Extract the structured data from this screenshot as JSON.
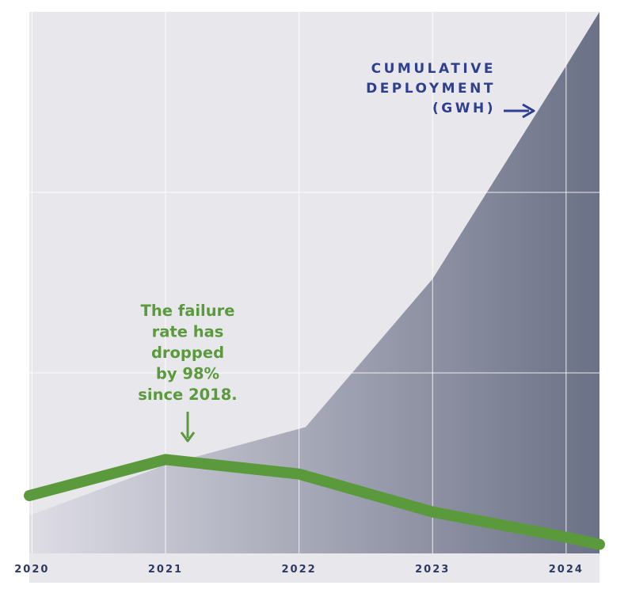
{
  "chart_data": {
    "type": "area",
    "x": [
      "2020",
      "2021",
      "2022",
      "2023",
      "2024"
    ],
    "series": [
      {
        "name": "CUMULATIVE DEPLOYMENT (GWH)",
        "kind": "area",
        "color": "#6b7186",
        "points": [
          [
            2019.98,
            0.21
          ],
          [
            2021.0,
            0.49
          ],
          [
            2022.05,
            0.7
          ],
          [
            2023.0,
            1.52
          ],
          [
            2024.0,
            2.7
          ],
          [
            2024.25,
            3.0
          ]
        ]
      },
      {
        "name": "failure rate",
        "kind": "line",
        "color": "#5b9a3c",
        "points": [
          [
            2019.98,
            0.32
          ],
          [
            2021.0,
            0.52
          ],
          [
            2022.0,
            0.44
          ],
          [
            2023.0,
            0.23
          ],
          [
            2024.0,
            0.09
          ],
          [
            2024.25,
            0.05
          ]
        ]
      }
    ],
    "xlim": [
      2019.98,
      2024.25
    ],
    "ylim": [
      0,
      3
    ],
    "grid": true,
    "annotations": {
      "deployment": [
        "CUMULATIVE",
        "DEPLOYMENT",
        "(GWH)"
      ],
      "failure": [
        "The failure",
        "rate has",
        "dropped",
        "by 98%",
        "since 2018."
      ]
    }
  },
  "colors": {
    "background": "#e8e8ec",
    "gradient_start": "#dedde6",
    "gradient_end": "#6b7186",
    "label_navy": "#2e3f8f",
    "label_green": "#5b9a3c",
    "tick": "#2e3a62",
    "grid": "#ffffff"
  }
}
